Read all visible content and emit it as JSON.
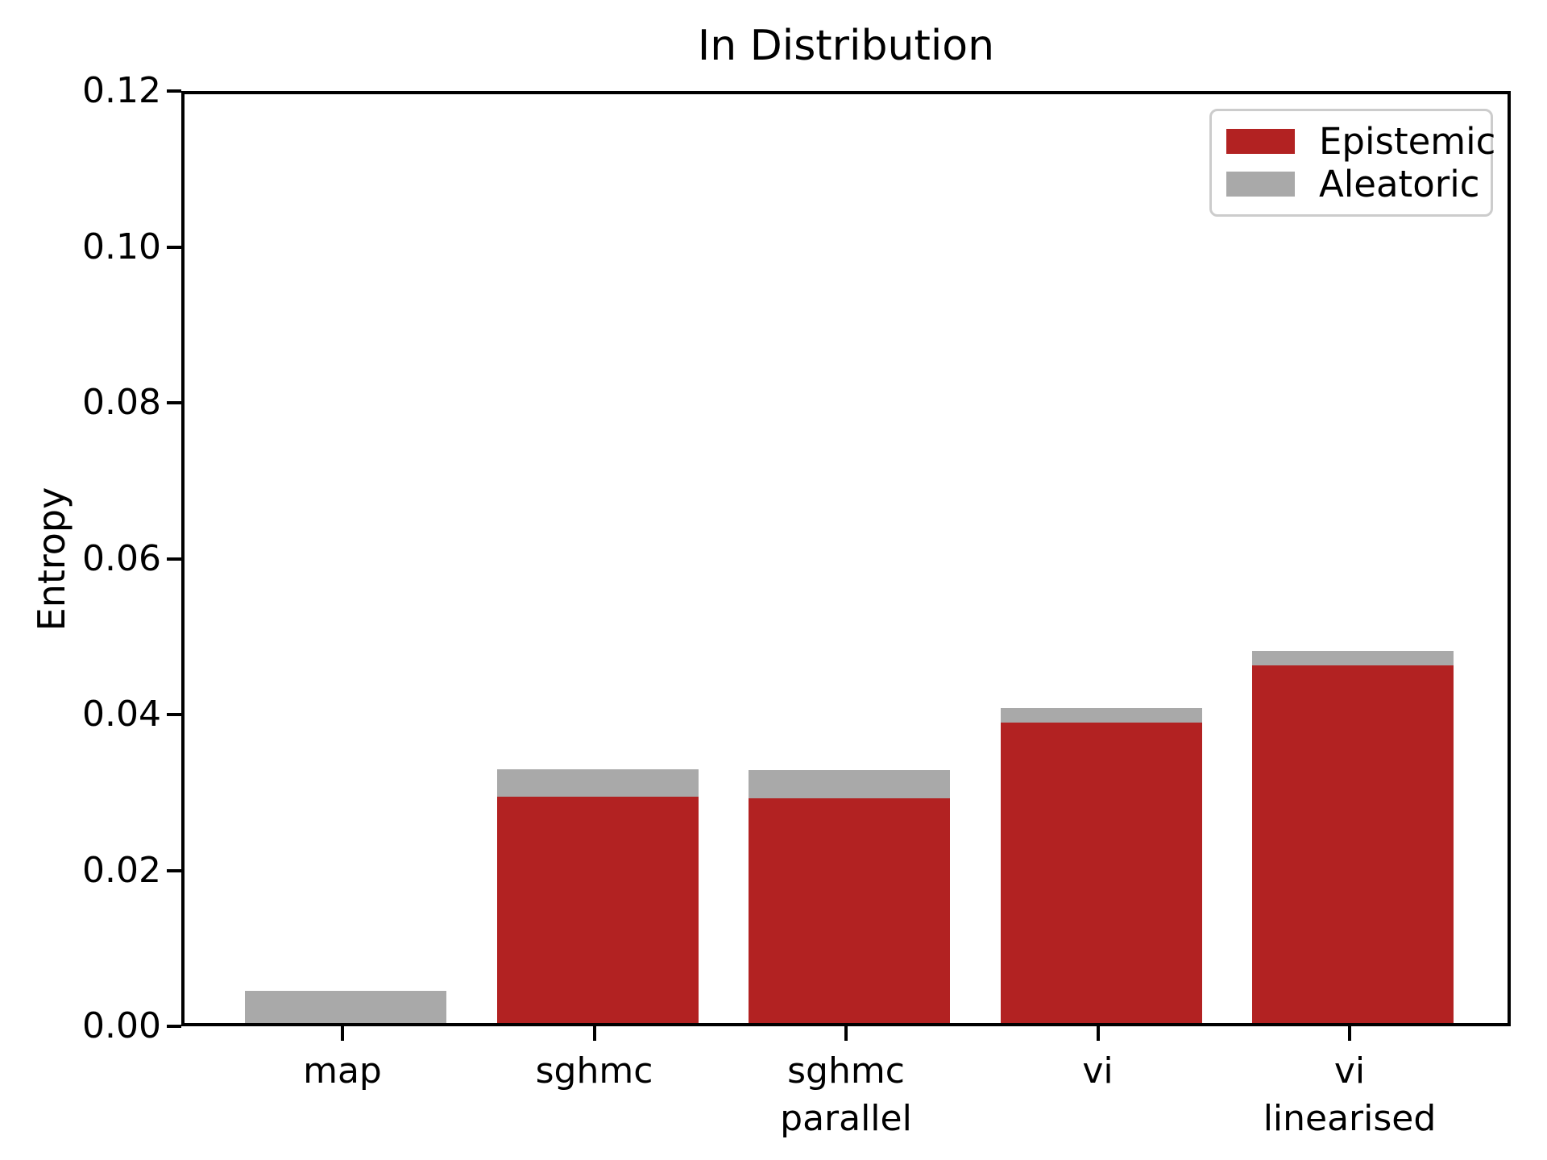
{
  "chart_data": {
    "type": "bar",
    "stacked": true,
    "title": "In Distribution",
    "xlabel": "",
    "ylabel": "Entropy",
    "categories": [
      "map",
      "sghmc",
      "sghmc\nparallel",
      "vi",
      "vi\nlinearised"
    ],
    "series": [
      {
        "name": "Epistemic",
        "color": "#B22222",
        "values": [
          0.0,
          0.0292,
          0.029,
          0.0388,
          0.0462
        ]
      },
      {
        "name": "Aleatoric",
        "color": "#A9A9A9",
        "values": [
          0.0042,
          0.0036,
          0.0037,
          0.0019,
          0.0019
        ]
      }
    ],
    "totals": [
      0.0042,
      0.0328,
      0.0327,
      0.0407,
      0.0481
    ],
    "ylim": [
      0.0,
      0.12
    ],
    "yticks": [
      "0.00",
      "0.02",
      "0.04",
      "0.06",
      "0.08",
      "0.10",
      "0.12"
    ],
    "grid": false,
    "legend_position": "upper right",
    "spine_color": "#000000",
    "background_color": "#FFFFFF"
  }
}
